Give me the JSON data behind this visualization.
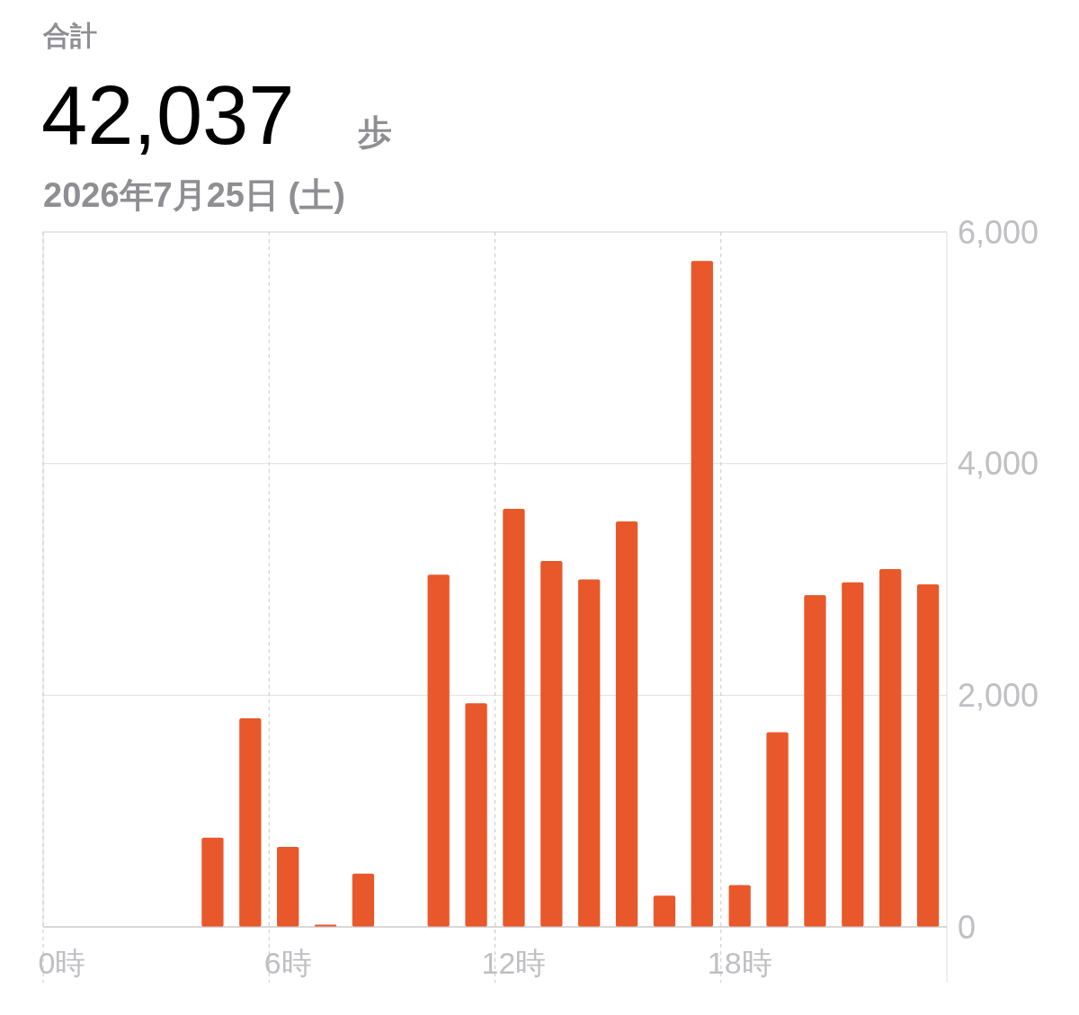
{
  "chart_data": {
    "type": "bar",
    "title": "合計",
    "subtitle": "2026年7月25日 (土)",
    "annotations": [
      "42,037",
      "歩"
    ],
    "categories": [
      "0時",
      null,
      null,
      null,
      null,
      null,
      "6時",
      null,
      null,
      null,
      null,
      null,
      "12時",
      null,
      null,
      null,
      null,
      null,
      "18時",
      null,
      null,
      null,
      null,
      null
    ],
    "values": [
      null,
      null,
      null,
      null,
      770,
      1800,
      690,
      20,
      460,
      null,
      3040,
      1930,
      3610,
      3160,
      3000,
      3500,
      270,
      5750,
      360,
      1680,
      2865,
      2974,
      3090,
      2958
    ],
    "color": "#e8582a",
    "ylim": [
      0,
      6000
    ],
    "yticks": [
      {
        "value": 0,
        "label": "0"
      },
      {
        "value": 2000,
        "label": "2,000"
      },
      {
        "value": 4000,
        "label": "4,000"
      },
      {
        "value": 6000,
        "label": "6,000"
      }
    ],
    "grid": true
  }
}
